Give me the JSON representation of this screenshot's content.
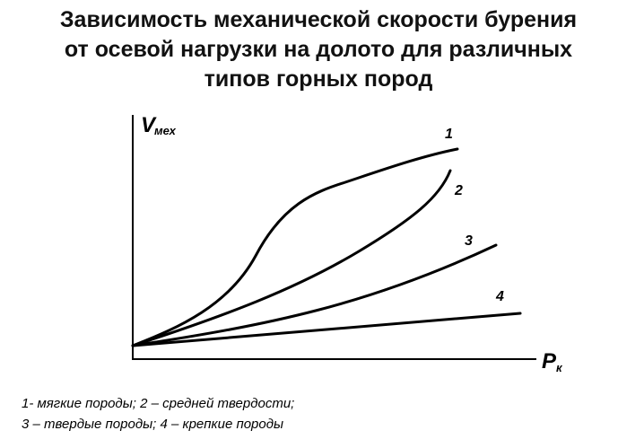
{
  "header": {
    "title_lines": [
      "Зависимость механической скорости бурения",
      "от  осевой нагрузки на долото для различных",
      "типов горных пород"
    ]
  },
  "axes": {
    "y_symbol": "V",
    "y_subscript": "мех",
    "x_symbol": "P",
    "x_subscript": "к"
  },
  "curves": [
    {
      "label": "1"
    },
    {
      "label": "2"
    },
    {
      "label": "3"
    },
    {
      "label": "4"
    }
  ],
  "caption_lines": [
    "1- мягкие породы; 2 – средней твердости;",
    "3 – твердые породы; 4 – крепкие породы"
  ]
}
